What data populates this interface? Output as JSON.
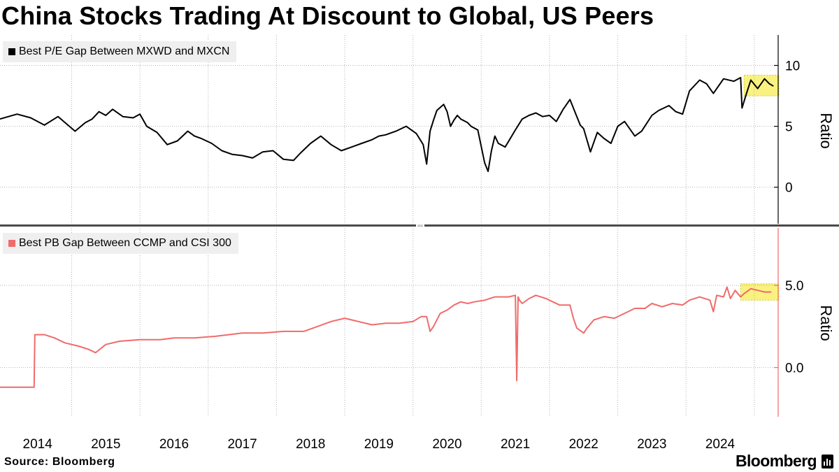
{
  "title": "China Stocks Trading At Discount to Global, US Peers",
  "source": "Source: Bloomberg",
  "brand": "Bloomberg",
  "colors": {
    "series_top": "#000000",
    "series_bottom": "#f06b6b",
    "highlight": "#f7ee57",
    "grid": "#b5b5b5"
  },
  "chart_data": [
    {
      "type": "line",
      "title": "",
      "legend": [
        "Best P/E Gap Between MXWD and MXCN"
      ],
      "ylabel": "Ratio",
      "ylim": [
        -3,
        12.5
      ],
      "yticks": [
        0,
        5,
        10
      ],
      "ytick_labels": [
        "0",
        "5",
        "10"
      ],
      "xlim": [
        2013.45,
        2024.85
      ],
      "x_tick_labels": [
        "2014",
        "2015",
        "2016",
        "2017",
        "2018",
        "2019",
        "2020",
        "2021",
        "2022",
        "2023",
        "2024"
      ],
      "highlight": {
        "x": [
          2024.35,
          2024.86
        ],
        "y": [
          7.5,
          9.2
        ]
      },
      "series": [
        {
          "name": "Best P/E Gap Between MXWD and MXCN",
          "x": [
            2013.45,
            2013.7,
            2013.9,
            2014.1,
            2014.3,
            2014.55,
            2014.7,
            2014.8,
            2014.9,
            2015.0,
            2015.1,
            2015.25,
            2015.4,
            2015.5,
            2015.6,
            2015.75,
            2015.9,
            2016.05,
            2016.2,
            2016.3,
            2016.4,
            2016.55,
            2016.7,
            2016.85,
            2017.0,
            2017.15,
            2017.3,
            2017.45,
            2017.6,
            2017.75,
            2017.85,
            2018.0,
            2018.15,
            2018.3,
            2018.45,
            2018.6,
            2018.75,
            2018.9,
            2019.0,
            2019.1,
            2019.25,
            2019.4,
            2019.55,
            2019.65,
            2019.7,
            2019.75,
            2019.8,
            2019.85,
            2019.95,
            2020.0,
            2020.05,
            2020.1,
            2020.15,
            2020.2,
            2020.3,
            2020.35,
            2020.45,
            2020.55,
            2020.6,
            2020.65,
            2020.7,
            2020.75,
            2020.85,
            2021.0,
            2021.1,
            2021.2,
            2021.3,
            2021.4,
            2021.5,
            2021.6,
            2021.7,
            2021.8,
            2021.9,
            2021.95,
            2022.0,
            2022.1,
            2022.2,
            2022.3,
            2022.4,
            2022.5,
            2022.6,
            2022.75,
            2022.85,
            2023.0,
            2023.1,
            2023.25,
            2023.35,
            2023.45,
            2023.55,
            2023.7,
            2023.8,
            2023.9,
            2024.05,
            2024.2,
            2024.3,
            2024.32,
            2024.38,
            2024.45,
            2024.55,
            2024.65,
            2024.72,
            2024.78
          ],
          "values": [
            5.6,
            6.0,
            5.7,
            5.1,
            5.8,
            4.6,
            5.3,
            5.6,
            6.2,
            5.9,
            6.4,
            5.8,
            5.7,
            6.0,
            5.0,
            4.5,
            3.5,
            3.8,
            4.6,
            4.2,
            4.0,
            3.6,
            3.0,
            2.7,
            2.6,
            2.4,
            2.9,
            3.0,
            2.3,
            2.2,
            2.8,
            3.6,
            4.2,
            3.5,
            3.0,
            3.3,
            3.6,
            3.9,
            4.2,
            4.3,
            4.6,
            5.0,
            4.4,
            3.5,
            1.9,
            4.6,
            5.5,
            6.3,
            6.8,
            6.2,
            5.0,
            5.5,
            5.9,
            5.6,
            5.3,
            5.0,
            4.7,
            2.0,
            1.3,
            3.0,
            4.2,
            3.6,
            3.3,
            4.7,
            5.6,
            5.9,
            6.1,
            5.8,
            5.9,
            5.4,
            6.4,
            7.2,
            5.8,
            5.1,
            4.8,
            2.9,
            4.5,
            4.0,
            3.6,
            5.0,
            5.4,
            4.2,
            4.6,
            5.9,
            6.3,
            6.7,
            6.2,
            6.0,
            7.9,
            8.8,
            8.5,
            7.7,
            8.9,
            8.7,
            9.0,
            6.5,
            7.6,
            8.8,
            8.1,
            8.9,
            8.5,
            8.3
          ]
        }
      ]
    },
    {
      "type": "line",
      "title": "",
      "legend": [
        "Best PB Gap Between CCMP and CSI 300"
      ],
      "ylabel": "Ratio",
      "ylim": [
        -3.0,
        8.5
      ],
      "yticks": [
        0.0,
        5.0
      ],
      "ytick_labels": [
        "0.0",
        "5.0"
      ],
      "xlim": [
        2013.45,
        2024.85
      ],
      "x_tick_labels": [
        "2014",
        "2015",
        "2016",
        "2017",
        "2018",
        "2019",
        "2020",
        "2021",
        "2022",
        "2023",
        "2024"
      ],
      "highlight": {
        "x": [
          2024.3,
          2024.86
        ],
        "y": [
          4.1,
          5.1
        ]
      },
      "series": [
        {
          "name": "Best PB Gap Between CCMP and CSI 300",
          "x": [
            2013.45,
            2013.7,
            2013.95,
            2013.96,
            2014.1,
            2014.25,
            2014.4,
            2014.6,
            2014.75,
            2014.85,
            2015.0,
            2015.2,
            2015.5,
            2015.8,
            2016.0,
            2016.3,
            2016.6,
            2016.8,
            2017.0,
            2017.3,
            2017.6,
            2017.9,
            2018.1,
            2018.3,
            2018.5,
            2018.7,
            2018.9,
            2019.1,
            2019.3,
            2019.5,
            2019.62,
            2019.7,
            2019.75,
            2019.8,
            2019.9,
            2020.0,
            2020.1,
            2020.2,
            2020.3,
            2020.4,
            2020.55,
            2020.7,
            2020.9,
            2021.0,
            2021.02,
            2021.04,
            2021.06,
            2021.1,
            2021.2,
            2021.3,
            2021.45,
            2021.55,
            2021.65,
            2021.8,
            2021.85,
            2021.9,
            2022.0,
            2022.05,
            2022.15,
            2022.3,
            2022.45,
            2022.6,
            2022.75,
            2022.9,
            2023.0,
            2023.15,
            2023.3,
            2023.45,
            2023.55,
            2023.7,
            2023.85,
            2023.9,
            2023.95,
            2024.05,
            2024.1,
            2024.15,
            2024.22,
            2024.3,
            2024.35,
            2024.45,
            2024.55,
            2024.65,
            2024.75
          ],
          "values": [
            -1.2,
            -1.2,
            -1.2,
            2.0,
            2.0,
            1.8,
            1.5,
            1.3,
            1.1,
            0.9,
            1.4,
            1.6,
            1.7,
            1.7,
            1.8,
            1.8,
            1.9,
            2.0,
            2.1,
            2.1,
            2.2,
            2.2,
            2.5,
            2.8,
            3.0,
            2.8,
            2.6,
            2.7,
            2.7,
            2.8,
            3.1,
            3.1,
            2.2,
            2.5,
            3.3,
            3.5,
            3.8,
            4.0,
            3.9,
            4.0,
            4.1,
            4.3,
            4.3,
            4.4,
            -0.8,
            4.3,
            4.1,
            3.9,
            4.2,
            4.4,
            4.2,
            4.0,
            3.8,
            3.8,
            3.0,
            2.4,
            2.1,
            2.4,
            2.9,
            3.1,
            3.0,
            3.3,
            3.6,
            3.6,
            3.9,
            3.7,
            3.9,
            3.8,
            4.1,
            4.3,
            4.1,
            3.4,
            4.4,
            4.3,
            4.9,
            4.2,
            4.7,
            4.3,
            4.5,
            4.8,
            4.7,
            4.6,
            4.6
          ]
        }
      ]
    }
  ]
}
